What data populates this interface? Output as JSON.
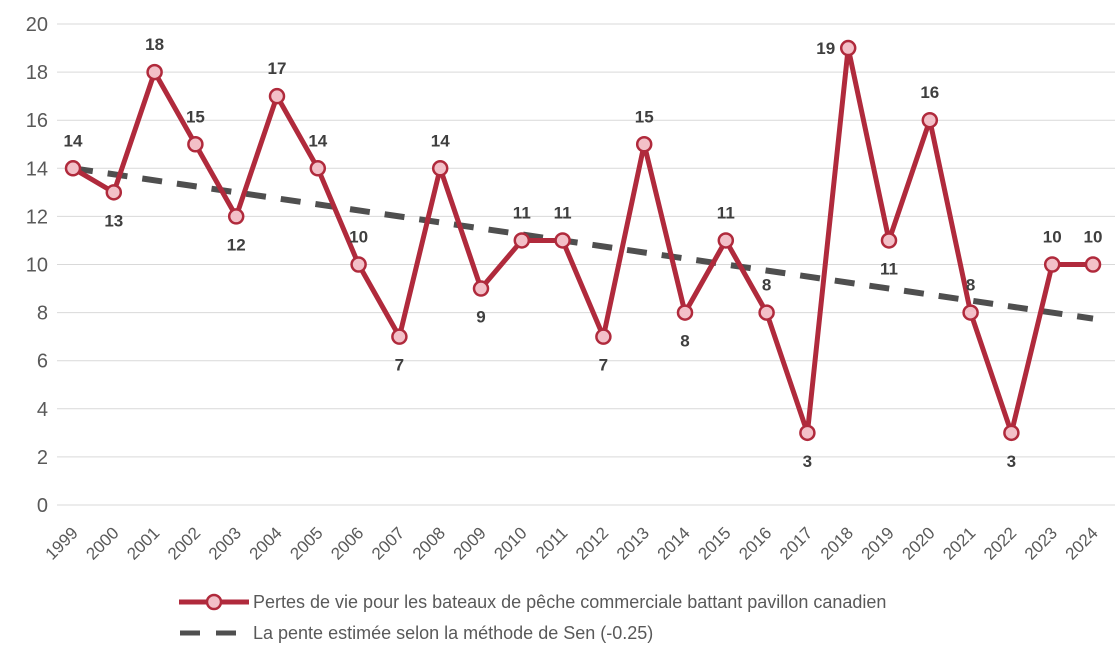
{
  "chart_data": {
    "type": "line",
    "title": "",
    "x": [
      "1999",
      "2000",
      "2001",
      "2002",
      "2003",
      "2004",
      "2005",
      "2006",
      "2007",
      "2008",
      "2009",
      "2010",
      "2011",
      "2012",
      "2013",
      "2014",
      "2015",
      "2016",
      "2017",
      "2018",
      "2019",
      "2020",
      "2021",
      "2022",
      "2023",
      "2024"
    ],
    "series": [
      {
        "name": "Pertes de vie pour les bateaux de pêche commerciale battant pavillon canadien",
        "values": [
          14,
          13,
          18,
          15,
          12,
          17,
          14,
          10,
          7,
          14,
          9,
          11,
          11,
          7,
          15,
          8,
          11,
          8,
          3,
          19,
          11,
          16,
          8,
          3,
          10,
          10
        ],
        "color": "#b02a3c",
        "marker_fill": "#f3c0c8",
        "label_side": [
          "above",
          "below",
          "above",
          "above",
          "below",
          "above",
          "above",
          "above",
          "below",
          "above",
          "below",
          "above",
          "above",
          "below",
          "above",
          "below",
          "above",
          "above",
          "below",
          "left",
          "below",
          "above",
          "above",
          "below",
          "above",
          "above"
        ]
      },
      {
        "name": "La pente estimée selon la méthode de Sen (-0.25)",
        "type": "trendline",
        "style": "dashed",
        "start_value": 14,
        "end_value": 7.75,
        "slope": -0.25,
        "color": "#4f4f4f"
      }
    ],
    "ylim": [
      0,
      20
    ],
    "ytick_step": 2,
    "grid": true,
    "legend_position": "bottom",
    "axis_label_color": "#595959",
    "data_label_color": "#3f3f3f",
    "gridline_color": "#d9d9d9"
  }
}
